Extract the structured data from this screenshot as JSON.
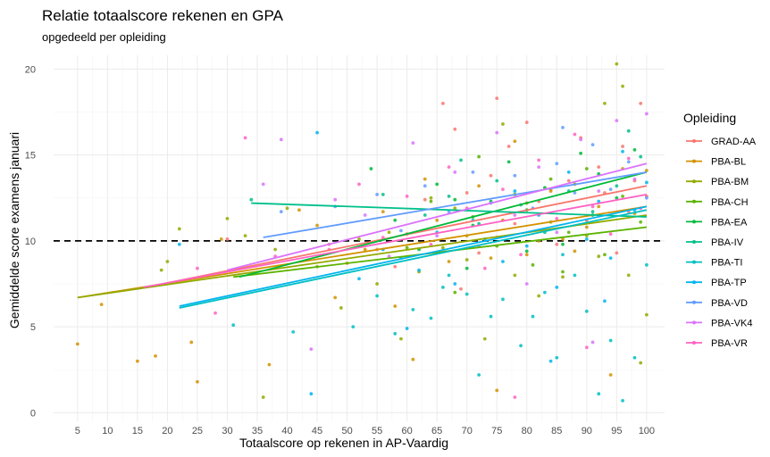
{
  "chart_data": {
    "type": "scatter",
    "title": "Relatie totaalscore rekenen en GPA",
    "subtitle": "opgedeeld per opleiding",
    "xlabel": "Totaalscore op rekenen in AP-Vaardig",
    "ylabel": "Gemiddelde score examens januari",
    "xlim": [
      1,
      103
    ],
    "ylim": [
      -0.5,
      20.8
    ],
    "xticks": [
      5,
      10,
      15,
      20,
      25,
      30,
      35,
      40,
      45,
      50,
      55,
      60,
      65,
      70,
      75,
      80,
      85,
      90,
      95,
      100
    ],
    "yticks": [
      0,
      5,
      10,
      15,
      20
    ],
    "grid": true,
    "reference_line": {
      "y": 10,
      "style": "dashed",
      "color": "#000000"
    },
    "legend_title": "Opleiding",
    "legend_position": "right",
    "series": [
      {
        "name": "GRAD-AA",
        "color": "#F8766D",
        "trend": [
          [
            15,
            7.2
          ],
          [
            100,
            13.2
          ]
        ],
        "points": [
          [
            30,
            10.1
          ],
          [
            47,
            9.8
          ],
          [
            55,
            9.5
          ],
          [
            60,
            10.4
          ],
          [
            63,
            12.4
          ],
          [
            66,
            18.0
          ],
          [
            68,
            16.5
          ],
          [
            70,
            12.8
          ],
          [
            72,
            9.3
          ],
          [
            74,
            13.8
          ],
          [
            75,
            18.3
          ],
          [
            77,
            15.5
          ],
          [
            78,
            11.0
          ],
          [
            80,
            16.9
          ],
          [
            82,
            12.3
          ],
          [
            84,
            13.0
          ],
          [
            85,
            9.8
          ],
          [
            87,
            13.5
          ],
          [
            89,
            16.0
          ],
          [
            90,
            11.2
          ],
          [
            92,
            14.3
          ],
          [
            93,
            12.8
          ],
          [
            95,
            9.3
          ],
          [
            96,
            15.5
          ],
          [
            97,
            11.7
          ],
          [
            98,
            13.5
          ],
          [
            99,
            18.0
          ],
          [
            100,
            12.6
          ],
          [
            58,
            8.5
          ],
          [
            69,
            7.2
          ]
        ]
      },
      {
        "name": "PBA-BL",
        "color": "#D39200",
        "trend": [
          [
            5,
            6.7
          ],
          [
            100,
            12.0
          ]
        ],
        "points": [
          [
            5,
            4.0
          ],
          [
            9,
            6.3
          ],
          [
            15,
            3.0
          ],
          [
            18,
            3.3
          ],
          [
            24,
            4.1
          ],
          [
            25,
            1.8
          ],
          [
            29,
            10.1
          ],
          [
            37,
            2.8
          ],
          [
            42,
            11.8
          ],
          [
            45,
            10.9
          ],
          [
            48,
            6.7
          ],
          [
            50,
            8.7
          ],
          [
            53,
            9.5
          ],
          [
            56,
            11.7
          ],
          [
            58,
            6.2
          ],
          [
            61,
            3.1
          ],
          [
            63,
            13.6
          ],
          [
            65,
            11.2
          ],
          [
            67,
            8.8
          ],
          [
            70,
            10.3
          ],
          [
            72,
            13.2
          ],
          [
            74,
            9.0
          ],
          [
            76,
            11.2
          ],
          [
            78,
            15.8
          ],
          [
            80,
            9.2
          ],
          [
            82,
            10.0
          ],
          [
            84,
            12.9
          ],
          [
            86,
            10.1
          ],
          [
            88,
            9.4
          ],
          [
            90,
            10.8
          ],
          [
            92,
            12.0
          ],
          [
            94,
            2.2
          ],
          [
            96,
            14.2
          ],
          [
            98,
            11.6
          ],
          [
            100,
            14.1
          ],
          [
            75,
            1.3
          ]
        ]
      },
      {
        "name": "PBA-BM",
        "color": "#93AA00",
        "trend": [
          [
            5,
            6.7
          ],
          [
            100,
            11.5
          ]
        ],
        "points": [
          [
            19,
            8.3
          ],
          [
            20,
            8.8
          ],
          [
            22,
            10.7
          ],
          [
            30,
            11.3
          ],
          [
            33,
            10.3
          ],
          [
            36,
            0.9
          ],
          [
            38,
            9.5
          ],
          [
            40,
            11.9
          ],
          [
            45,
            8.5
          ],
          [
            49,
            6.1
          ],
          [
            52,
            10.1
          ],
          [
            55,
            7.5
          ],
          [
            57,
            10.5
          ],
          [
            59,
            4.3
          ],
          [
            62,
            8.2
          ],
          [
            64,
            12.5
          ],
          [
            66,
            9.6
          ],
          [
            68,
            11.9
          ],
          [
            70,
            8.9
          ],
          [
            73,
            4.3
          ],
          [
            75,
            10.2
          ],
          [
            76,
            16.8
          ],
          [
            78,
            8.0
          ],
          [
            80,
            12.2
          ],
          [
            82,
            6.8
          ],
          [
            84,
            11.1
          ],
          [
            86,
            7.9
          ],
          [
            88,
            13.3
          ],
          [
            90,
            10.3
          ],
          [
            92,
            9.1
          ],
          [
            93,
            18.0
          ],
          [
            95,
            20.3
          ],
          [
            96,
            19.0
          ],
          [
            97,
            8.0
          ],
          [
            99,
            2.9
          ],
          [
            100,
            5.7
          ]
        ]
      },
      {
        "name": "PBA-CH",
        "color": "#5BB300",
        "trend": [
          [
            31,
            7.9
          ],
          [
            100,
            10.8
          ]
        ],
        "points": [
          [
            60,
            9.6
          ],
          [
            64,
            12.3
          ],
          [
            68,
            7.0
          ],
          [
            71,
            11.4
          ],
          [
            75,
            9.7
          ],
          [
            78,
            12.7
          ],
          [
            81,
            8.6
          ],
          [
            84,
            13.6
          ],
          [
            87,
            10.5
          ],
          [
            90,
            14.2
          ],
          [
            93,
            9.2
          ],
          [
            96,
            12.6
          ],
          [
            99,
            11.1
          ],
          [
            72,
            14.9
          ],
          [
            86,
            8.2
          ]
        ]
      },
      {
        "name": "PBA-EA",
        "color": "#00BA38",
        "trend": [
          [
            32,
            7.9
          ],
          [
            100,
            14.0
          ]
        ],
        "points": [
          [
            54,
            14.2
          ],
          [
            58,
            11.2
          ],
          [
            62,
            9.5
          ],
          [
            65,
            13.3
          ],
          [
            68,
            12.4
          ],
          [
            71,
            10.9
          ],
          [
            74,
            12.3
          ],
          [
            77,
            14.6
          ],
          [
            80,
            11.8
          ],
          [
            83,
            13.1
          ],
          [
            86,
            9.8
          ],
          [
            89,
            15.1
          ],
          [
            92,
            13.9
          ],
          [
            95,
            12.5
          ],
          [
            98,
            15.3
          ],
          [
            70,
            8.4
          ],
          [
            80,
            9.4
          ],
          [
            91,
            11.5
          ]
        ]
      },
      {
        "name": "PBA-IV",
        "color": "#00C08B",
        "trend": [
          [
            34,
            12.2
          ],
          [
            100,
            11.4
          ]
        ],
        "points": [
          [
            34,
            12.4
          ],
          [
            56,
            12.7
          ],
          [
            63,
            11.5
          ],
          [
            67,
            12.6
          ],
          [
            72,
            11.0
          ],
          [
            75,
            13.5
          ],
          [
            79,
            12.1
          ],
          [
            83,
            10.5
          ],
          [
            87,
            12.9
          ],
          [
            91,
            11.7
          ],
          [
            95,
            13.2
          ],
          [
            99,
            14.9
          ],
          [
            97,
            16.4
          ],
          [
            69,
            14.7
          ]
        ]
      },
      {
        "name": "PBA-TI",
        "color": "#00BFC4",
        "trend": [
          [
            22,
            6.1
          ],
          [
            100,
            11.8
          ]
        ],
        "points": [
          [
            31,
            5.1
          ],
          [
            41,
            4.7
          ],
          [
            51,
            5.0
          ],
          [
            55,
            6.8
          ],
          [
            58,
            4.6
          ],
          [
            61,
            6.0
          ],
          [
            64,
            5.5
          ],
          [
            67,
            8.0
          ],
          [
            70,
            6.9
          ],
          [
            72,
            2.2
          ],
          [
            74,
            5.6
          ],
          [
            76,
            6.6
          ],
          [
            79,
            3.9
          ],
          [
            81,
            5.6
          ],
          [
            83,
            7.0
          ],
          [
            85,
            3.2
          ],
          [
            88,
            8.0
          ],
          [
            90,
            5.9
          ],
          [
            92,
            1.1
          ],
          [
            94,
            4.2
          ],
          [
            96,
            0.7
          ],
          [
            98,
            3.2
          ],
          [
            100,
            8.6
          ],
          [
            86,
            9.2
          ],
          [
            66,
            7.3
          ]
        ]
      },
      {
        "name": "PBA-TP",
        "color": "#00B4EF",
        "trend": [
          [
            22,
            6.2
          ],
          [
            100,
            12.0
          ]
        ],
        "points": [
          [
            22,
            9.8
          ],
          [
            44,
            1.1
          ],
          [
            45,
            16.3
          ],
          [
            52,
            7.8
          ],
          [
            56,
            9.5
          ],
          [
            59,
            9.0
          ],
          [
            62,
            8.3
          ],
          [
            65,
            10.5
          ],
          [
            68,
            7.5
          ],
          [
            71,
            11.2
          ],
          [
            73,
            10.1
          ],
          [
            76,
            8.8
          ],
          [
            78,
            12.9
          ],
          [
            80,
            9.7
          ],
          [
            82,
            11.5
          ],
          [
            85,
            7.3
          ],
          [
            87,
            14.0
          ],
          [
            90,
            10.1
          ],
          [
            92,
            12.3
          ],
          [
            94,
            9.0
          ],
          [
            96,
            15.2
          ],
          [
            98,
            11.8
          ],
          [
            100,
            13.4
          ],
          [
            60,
            4.9
          ],
          [
            84,
            3.0
          ],
          [
            93,
            6.5
          ]
        ]
      },
      {
        "name": "PBA-VD",
        "color": "#619CFF",
        "trend": [
          [
            36,
            10.2
          ],
          [
            100,
            14.0
          ]
        ],
        "points": [
          [
            39,
            11.7
          ],
          [
            48,
            12.0
          ],
          [
            55,
            12.7
          ],
          [
            59,
            10.6
          ],
          [
            63,
            13.2
          ],
          [
            67,
            11.7
          ],
          [
            71,
            14.0
          ],
          [
            74,
            12.2
          ],
          [
            78,
            13.8
          ],
          [
            81,
            11.9
          ],
          [
            85,
            14.5
          ],
          [
            88,
            12.8
          ],
          [
            91,
            15.6
          ],
          [
            94,
            13.0
          ],
          [
            97,
            14.6
          ],
          [
            100,
            12.5
          ],
          [
            86,
            16.6
          ]
        ]
      },
      {
        "name": "PBA-VK4",
        "color": "#DB72FB",
        "trend": [
          [
            30,
            8.3
          ],
          [
            100,
            14.5
          ]
        ],
        "points": [
          [
            36,
            13.3
          ],
          [
            39,
            15.9
          ],
          [
            44,
            3.7
          ],
          [
            48,
            12.4
          ],
          [
            53,
            11.5
          ],
          [
            57,
            9.1
          ],
          [
            61,
            15.7
          ],
          [
            65,
            10.3
          ],
          [
            68,
            14.0
          ],
          [
            72,
            9.7
          ],
          [
            75,
            16.3
          ],
          [
            78,
            11.5
          ],
          [
            82,
            14.3
          ],
          [
            85,
            10.5
          ],
          [
            89,
            15.9
          ],
          [
            92,
            12.9
          ],
          [
            95,
            17.0
          ],
          [
            98,
            13.6
          ],
          [
            100,
            17.4
          ],
          [
            80,
            7.5
          ],
          [
            91,
            4.1
          ]
        ]
      },
      {
        "name": "PBA-VR",
        "color": "#FF61C3",
        "trend": [
          [
            16,
            7.3
          ],
          [
            100,
            12.7
          ]
        ],
        "points": [
          [
            25,
            8.4
          ],
          [
            28,
            5.8
          ],
          [
            33,
            16.0
          ],
          [
            38,
            9.1
          ],
          [
            47,
            9.5
          ],
          [
            52,
            13.3
          ],
          [
            56,
            10.2
          ],
          [
            60,
            12.6
          ],
          [
            64,
            9.8
          ],
          [
            67,
            14.3
          ],
          [
            70,
            11.9
          ],
          [
            73,
            8.4
          ],
          [
            76,
            13.0
          ],
          [
            79,
            9.2
          ],
          [
            82,
            14.7
          ],
          [
            85,
            11.3
          ],
          [
            88,
            16.2
          ],
          [
            91,
            12.0
          ],
          [
            94,
            10.4
          ],
          [
            97,
            14.8
          ],
          [
            99,
            11.9
          ],
          [
            78,
            0.9
          ],
          [
            90,
            3.8
          ]
        ]
      }
    ]
  }
}
